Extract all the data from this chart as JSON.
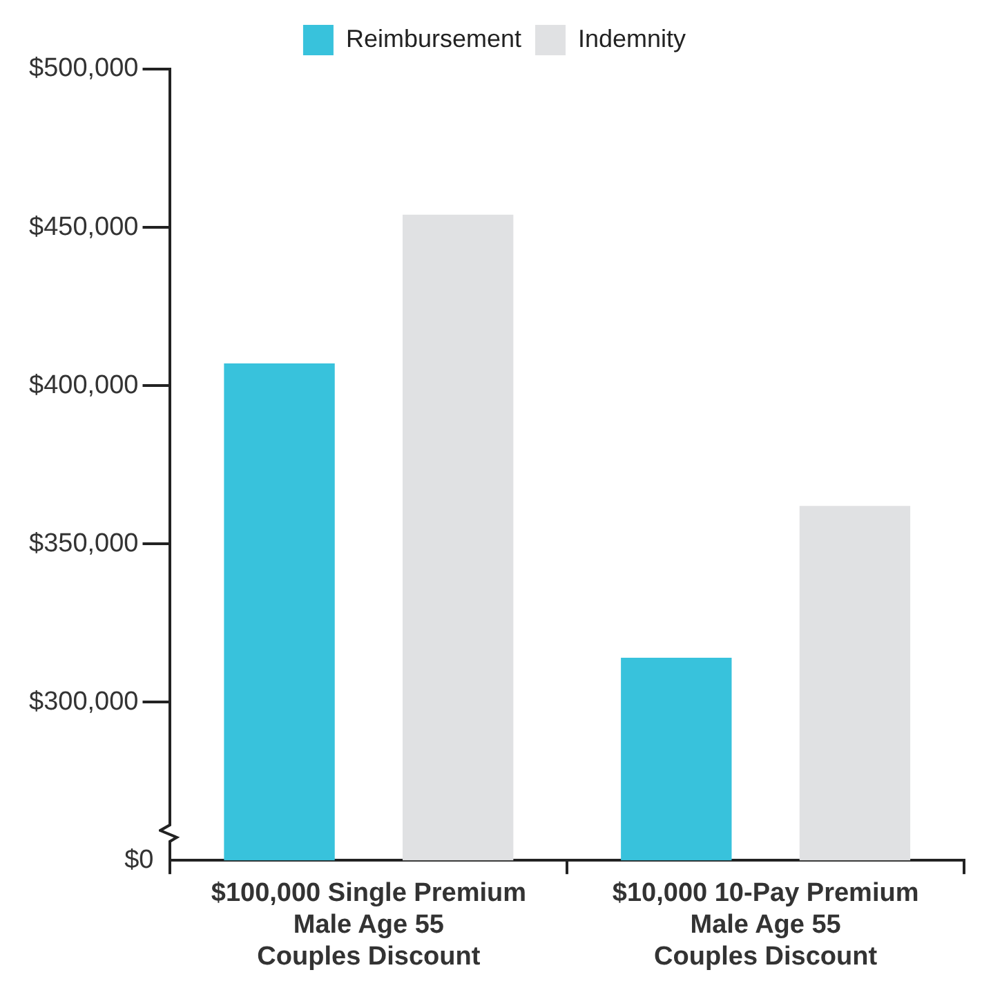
{
  "chart_data": {
    "type": "bar",
    "categories": [
      "$100,000 Single Premium\nMale Age 55\nCouples Discount",
      "$10,000 10-Pay Premium\nMale Age 55\nCouples Discount"
    ],
    "series": [
      {
        "name": "Reimbursement",
        "color": "#38c2dc",
        "values": [
          407000,
          314000
        ]
      },
      {
        "name": "Indemnity",
        "color": "#e0e1e3",
        "values": [
          454000,
          362000
        ]
      }
    ],
    "ylim": [
      250000,
      500000
    ],
    "annotations": [
      "$0"
    ],
    "yticks": [
      {
        "value": 300000,
        "label": "$300,000"
      },
      {
        "value": 350000,
        "label": "$350,000"
      },
      {
        "value": 400000,
        "label": "$400,000"
      },
      {
        "value": 450000,
        "label": "$450,000"
      },
      {
        "value": 500000,
        "label": "$500,000"
      }
    ],
    "grid": false,
    "legend": "top"
  }
}
